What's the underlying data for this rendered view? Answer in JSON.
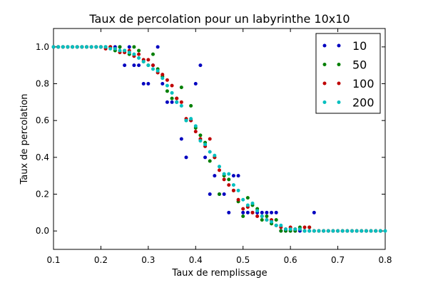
{
  "chart_data": {
    "type": "scatter",
    "title": "Taux de percolation pour un labyrinthe 10x10",
    "xlabel": "Taux de remplissage",
    "ylabel": "Taux de percolation",
    "xlim": [
      0.1,
      0.8
    ],
    "ylim": [
      -0.1,
      1.1
    ],
    "xticks": [
      "0.1",
      "0.2",
      "0.3",
      "0.4",
      "0.5",
      "0.6",
      "0.7",
      "0.8"
    ],
    "yticks": [
      "0.0",
      "0.2",
      "0.4",
      "0.6",
      "0.8",
      "1.0"
    ],
    "grid": false,
    "legend_position": "top-right",
    "series": [
      {
        "name": "10",
        "color": "#0000bf",
        "points": [
          [
            0.1,
            1.0
          ],
          [
            0.11,
            1.0
          ],
          [
            0.12,
            1.0
          ],
          [
            0.13,
            1.0
          ],
          [
            0.14,
            1.0
          ],
          [
            0.15,
            1.0
          ],
          [
            0.16,
            1.0
          ],
          [
            0.17,
            1.0
          ],
          [
            0.18,
            1.0
          ],
          [
            0.19,
            1.0
          ],
          [
            0.2,
            1.0
          ],
          [
            0.21,
            1.0
          ],
          [
            0.22,
            1.0
          ],
          [
            0.23,
            1.0
          ],
          [
            0.24,
            1.0
          ],
          [
            0.25,
            0.9
          ],
          [
            0.26,
            1.0
          ],
          [
            0.27,
            0.9
          ],
          [
            0.28,
            0.9
          ],
          [
            0.29,
            0.8
          ],
          [
            0.3,
            0.8
          ],
          [
            0.31,
            0.9
          ],
          [
            0.32,
            1.0
          ],
          [
            0.33,
            0.8
          ],
          [
            0.34,
            0.7
          ],
          [
            0.35,
            0.7
          ],
          [
            0.36,
            0.7
          ],
          [
            0.37,
            0.5
          ],
          [
            0.38,
            0.4
          ],
          [
            0.39,
            0.6
          ],
          [
            0.4,
            0.8
          ],
          [
            0.41,
            0.9
          ],
          [
            0.42,
            0.4
          ],
          [
            0.43,
            0.2
          ],
          [
            0.44,
            0.3
          ],
          [
            0.45,
            0.2
          ],
          [
            0.46,
            0.2
          ],
          [
            0.47,
            0.1
          ],
          [
            0.48,
            0.3
          ],
          [
            0.49,
            0.3
          ],
          [
            0.5,
            0.1
          ],
          [
            0.51,
            0.1
          ],
          [
            0.52,
            0.1
          ],
          [
            0.53,
            0.1
          ],
          [
            0.54,
            0.1
          ],
          [
            0.55,
            0.1
          ],
          [
            0.56,
            0.1
          ],
          [
            0.57,
            0.1
          ],
          [
            0.58,
            0.0
          ],
          [
            0.59,
            0.0
          ],
          [
            0.6,
            0.0
          ],
          [
            0.61,
            0.0
          ],
          [
            0.62,
            0.0
          ],
          [
            0.63,
            0.0
          ],
          [
            0.64,
            0.0
          ],
          [
            0.65,
            0.1
          ],
          [
            0.66,
            0.0
          ],
          [
            0.67,
            0.0
          ],
          [
            0.68,
            0.0
          ],
          [
            0.69,
            0.0
          ],
          [
            0.7,
            0.0
          ],
          [
            0.71,
            0.0
          ],
          [
            0.72,
            0.0
          ],
          [
            0.73,
            0.0
          ],
          [
            0.74,
            0.0
          ],
          [
            0.75,
            0.0
          ],
          [
            0.76,
            0.0
          ],
          [
            0.77,
            0.0
          ],
          [
            0.78,
            0.0
          ],
          [
            0.79,
            0.0
          ]
        ]
      },
      {
        "name": "50",
        "color": "#007f00",
        "points": [
          [
            0.1,
            1.0
          ],
          [
            0.11,
            1.0
          ],
          [
            0.12,
            1.0
          ],
          [
            0.13,
            1.0
          ],
          [
            0.14,
            1.0
          ],
          [
            0.15,
            1.0
          ],
          [
            0.16,
            1.0
          ],
          [
            0.17,
            1.0
          ],
          [
            0.18,
            1.0
          ],
          [
            0.19,
            1.0
          ],
          [
            0.2,
            1.0
          ],
          [
            0.21,
            1.0
          ],
          [
            0.22,
            1.0
          ],
          [
            0.23,
            0.98
          ],
          [
            0.24,
            1.0
          ],
          [
            0.25,
            0.98
          ],
          [
            0.26,
            0.96
          ],
          [
            0.27,
            1.0
          ],
          [
            0.28,
            0.98
          ],
          [
            0.29,
            0.92
          ],
          [
            0.3,
            0.9
          ],
          [
            0.31,
            0.96
          ],
          [
            0.32,
            0.88
          ],
          [
            0.33,
            0.84
          ],
          [
            0.34,
            0.76
          ],
          [
            0.35,
            0.72
          ],
          [
            0.36,
            0.72
          ],
          [
            0.37,
            0.78
          ],
          [
            0.38,
            0.6
          ],
          [
            0.39,
            0.68
          ],
          [
            0.4,
            0.56
          ],
          [
            0.41,
            0.52
          ],
          [
            0.42,
            0.48
          ],
          [
            0.43,
            0.38
          ],
          [
            0.44,
            0.4
          ],
          [
            0.45,
            0.2
          ],
          [
            0.46,
            0.3
          ],
          [
            0.47,
            0.28
          ],
          [
            0.48,
            0.22
          ],
          [
            0.49,
            0.16
          ],
          [
            0.5,
            0.08
          ],
          [
            0.51,
            0.18
          ],
          [
            0.52,
            0.14
          ],
          [
            0.53,
            0.12
          ],
          [
            0.54,
            0.06
          ],
          [
            0.55,
            0.08
          ],
          [
            0.56,
            0.04
          ],
          [
            0.57,
            0.06
          ],
          [
            0.58,
            0.0
          ],
          [
            0.59,
            0.0
          ],
          [
            0.6,
            0.0
          ],
          [
            0.61,
            0.0
          ],
          [
            0.62,
            0.02
          ],
          [
            0.63,
            0.0
          ],
          [
            0.64,
            0.02
          ],
          [
            0.65,
            0.0
          ],
          [
            0.66,
            0.0
          ],
          [
            0.67,
            0.0
          ],
          [
            0.68,
            0.0
          ],
          [
            0.69,
            0.0
          ],
          [
            0.7,
            0.0
          ],
          [
            0.71,
            0.0
          ],
          [
            0.72,
            0.0
          ],
          [
            0.73,
            0.0
          ],
          [
            0.74,
            0.0
          ],
          [
            0.75,
            0.0
          ],
          [
            0.76,
            0.0
          ],
          [
            0.77,
            0.0
          ],
          [
            0.78,
            0.0
          ],
          [
            0.79,
            0.0
          ]
        ]
      },
      {
        "name": "100",
        "color": "#bf0000",
        "points": [
          [
            0.1,
            1.0
          ],
          [
            0.11,
            1.0
          ],
          [
            0.12,
            1.0
          ],
          [
            0.13,
            1.0
          ],
          [
            0.14,
            1.0
          ],
          [
            0.15,
            1.0
          ],
          [
            0.16,
            1.0
          ],
          [
            0.17,
            1.0
          ],
          [
            0.18,
            1.0
          ],
          [
            0.19,
            1.0
          ],
          [
            0.2,
            1.0
          ],
          [
            0.21,
            0.99
          ],
          [
            0.22,
            1.0
          ],
          [
            0.23,
            0.99
          ],
          [
            0.24,
            0.97
          ],
          [
            0.25,
            0.97
          ],
          [
            0.26,
            0.98
          ],
          [
            0.27,
            0.95
          ],
          [
            0.28,
            0.96
          ],
          [
            0.29,
            0.93
          ],
          [
            0.3,
            0.93
          ],
          [
            0.31,
            0.9
          ],
          [
            0.32,
            0.86
          ],
          [
            0.33,
            0.85
          ],
          [
            0.34,
            0.82
          ],
          [
            0.35,
            0.79
          ],
          [
            0.36,
            0.72
          ],
          [
            0.37,
            0.7
          ],
          [
            0.38,
            0.61
          ],
          [
            0.39,
            0.6
          ],
          [
            0.4,
            0.54
          ],
          [
            0.41,
            0.5
          ],
          [
            0.42,
            0.46
          ],
          [
            0.43,
            0.5
          ],
          [
            0.44,
            0.4
          ],
          [
            0.45,
            0.33
          ],
          [
            0.46,
            0.28
          ],
          [
            0.47,
            0.25
          ],
          [
            0.48,
            0.22
          ],
          [
            0.49,
            0.17
          ],
          [
            0.5,
            0.12
          ],
          [
            0.51,
            0.13
          ],
          [
            0.52,
            0.1
          ],
          [
            0.53,
            0.08
          ],
          [
            0.54,
            0.08
          ],
          [
            0.55,
            0.06
          ],
          [
            0.56,
            0.06
          ],
          [
            0.57,
            0.03
          ],
          [
            0.58,
            0.02
          ],
          [
            0.59,
            0.01
          ],
          [
            0.6,
            0.02
          ],
          [
            0.61,
            0.01
          ],
          [
            0.62,
            0.01
          ],
          [
            0.63,
            0.02
          ],
          [
            0.64,
            0.02
          ],
          [
            0.65,
            0.0
          ],
          [
            0.66,
            0.0
          ],
          [
            0.67,
            0.0
          ],
          [
            0.68,
            0.0
          ],
          [
            0.69,
            0.0
          ],
          [
            0.7,
            0.0
          ],
          [
            0.71,
            0.0
          ],
          [
            0.72,
            0.0
          ],
          [
            0.73,
            0.0
          ],
          [
            0.74,
            0.0
          ],
          [
            0.75,
            0.0
          ],
          [
            0.76,
            0.0
          ],
          [
            0.77,
            0.0
          ],
          [
            0.78,
            0.0
          ],
          [
            0.79,
            0.0
          ]
        ]
      },
      {
        "name": "200",
        "color": "#00bfbf",
        "points": [
          [
            0.1,
            1.0
          ],
          [
            0.11,
            1.0
          ],
          [
            0.12,
            1.0
          ],
          [
            0.13,
            1.0
          ],
          [
            0.14,
            1.0
          ],
          [
            0.15,
            1.0
          ],
          [
            0.16,
            1.0
          ],
          [
            0.17,
            1.0
          ],
          [
            0.18,
            1.0
          ],
          [
            0.19,
            1.0
          ],
          [
            0.2,
            1.0
          ],
          [
            0.21,
            1.0
          ],
          [
            0.22,
            0.99
          ],
          [
            0.23,
            0.99
          ],
          [
            0.24,
            0.98
          ],
          [
            0.25,
            0.98
          ],
          [
            0.26,
            0.97
          ],
          [
            0.27,
            0.96
          ],
          [
            0.28,
            0.94
          ],
          [
            0.29,
            0.92
          ],
          [
            0.3,
            0.9
          ],
          [
            0.31,
            0.88
          ],
          [
            0.32,
            0.87
          ],
          [
            0.33,
            0.83
          ],
          [
            0.34,
            0.79
          ],
          [
            0.35,
            0.75
          ],
          [
            0.36,
            0.7
          ],
          [
            0.37,
            0.68
          ],
          [
            0.38,
            0.6
          ],
          [
            0.39,
            0.61
          ],
          [
            0.4,
            0.57
          ],
          [
            0.41,
            0.49
          ],
          [
            0.42,
            0.47
          ],
          [
            0.43,
            0.43
          ],
          [
            0.44,
            0.41
          ],
          [
            0.45,
            0.35
          ],
          [
            0.46,
            0.31
          ],
          [
            0.47,
            0.31
          ],
          [
            0.48,
            0.25
          ],
          [
            0.49,
            0.22
          ],
          [
            0.5,
            0.17
          ],
          [
            0.51,
            0.14
          ],
          [
            0.52,
            0.15
          ],
          [
            0.53,
            0.11
          ],
          [
            0.54,
            0.08
          ],
          [
            0.55,
            0.06
          ],
          [
            0.56,
            0.05
          ],
          [
            0.57,
            0.03
          ],
          [
            0.58,
            0.03
          ],
          [
            0.59,
            0.01
          ],
          [
            0.6,
            0.01
          ],
          [
            0.61,
            0.01
          ],
          [
            0.62,
            0.01
          ],
          [
            0.63,
            0.0
          ],
          [
            0.64,
            0.0
          ],
          [
            0.65,
            0.0
          ],
          [
            0.66,
            0.0
          ],
          [
            0.67,
            0.0
          ],
          [
            0.68,
            0.0
          ],
          [
            0.69,
            0.0
          ],
          [
            0.7,
            0.0
          ],
          [
            0.71,
            0.0
          ],
          [
            0.72,
            0.0
          ],
          [
            0.73,
            0.0
          ],
          [
            0.74,
            0.0
          ],
          [
            0.75,
            0.0
          ],
          [
            0.76,
            0.0
          ],
          [
            0.77,
            0.0
          ],
          [
            0.78,
            0.0
          ],
          [
            0.79,
            0.0
          ],
          [
            0.8,
            0.0
          ]
        ]
      }
    ]
  }
}
